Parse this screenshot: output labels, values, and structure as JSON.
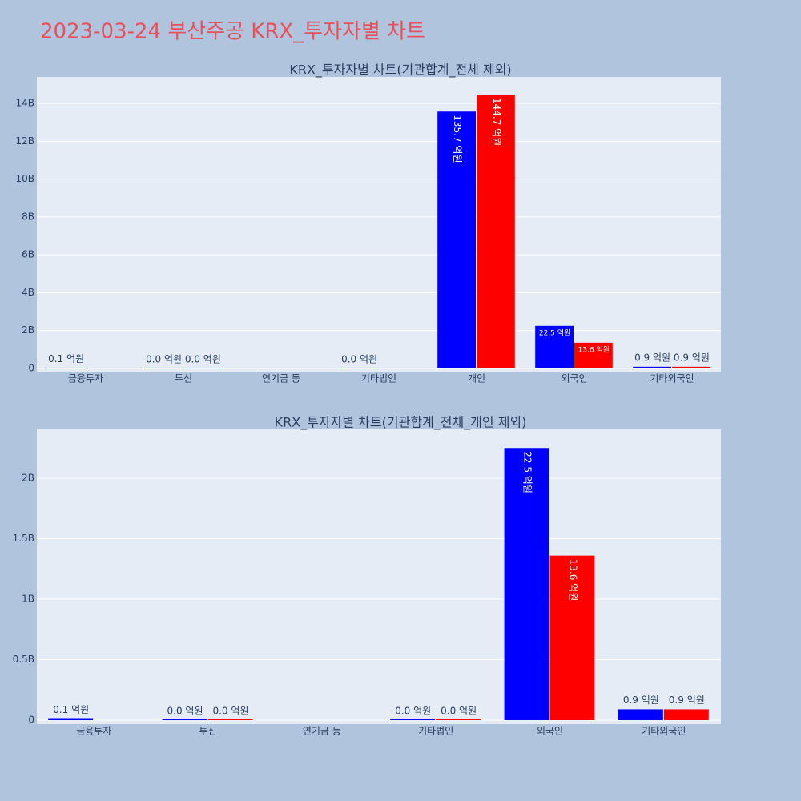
{
  "title": "2023-03-24 부산주공 KRX_투자자별 차트",
  "chart_data": [
    {
      "type": "bar",
      "title": "KRX_투자자별 차트(기관합계_전체 제외)",
      "categories": [
        "금융투자",
        "투신",
        "연기금 등",
        "기타법인",
        "개인",
        "외국인",
        "기타외국인"
      ],
      "series": [
        {
          "color": "#0000ff",
          "values": [
            10000000,
            0,
            null,
            0,
            13570000000,
            2250000000,
            90000000
          ],
          "value_labels": [
            "0.1 억원",
            "0.0 억원",
            null,
            "0.0 억원",
            "135.7 억원",
            "22.5 억원",
            "0.9 억원"
          ]
        },
        {
          "color": "#ff0000",
          "values": [
            null,
            0,
            null,
            null,
            14470000000,
            1360000000,
            90000000
          ],
          "value_labels": [
            null,
            "0.0 억원",
            null,
            null,
            "144.7 억원",
            "13.6 억원",
            "0.9 억원"
          ]
        }
      ],
      "ylim": [
        -170000000,
        15400000000
      ],
      "yticks": [
        0,
        {
          "value": 2000000000,
          "label": "2B"
        },
        {
          "value": 4000000000,
          "label": "4B"
        },
        {
          "value": 6000000000,
          "label": "6B"
        },
        {
          "value": 8000000000,
          "label": "8B"
        },
        {
          "value": 10000000000,
          "label": "10B"
        },
        {
          "value": 12000000000,
          "label": "12B"
        },
        {
          "value": 14000000000,
          "label": "14B"
        }
      ],
      "grid": true
    },
    {
      "type": "bar",
      "title": "KRX_투자자별 차트(기관합계_전체_개인 제외)",
      "categories": [
        "금융투자",
        "투신",
        "연기금 등",
        "기타법인",
        "외국인",
        "기타외국인"
      ],
      "series": [
        {
          "color": "#0000ff",
          "values": [
            10000000,
            0,
            null,
            0,
            2250000000,
            90000000
          ],
          "value_labels": [
            "0.1 억원",
            "0.0 억원",
            null,
            "0.0 억원",
            "22.5 억원",
            "0.9 억원"
          ]
        },
        {
          "color": "#ff0000",
          "values": [
            null,
            0,
            null,
            0,
            1360000000,
            90000000
          ],
          "value_labels": [
            null,
            "0.0 억원",
            null,
            "0.0 억원",
            "13.6 억원",
            "0.9 억원"
          ]
        }
      ],
      "ylim": [
        -33000000,
        2404000000
      ],
      "yticks": [
        0,
        {
          "value": 500000000,
          "label": "0.5B"
        },
        {
          "value": 1000000000,
          "label": "1B"
        },
        {
          "value": 1500000000,
          "label": "1.5B"
        },
        {
          "value": 2000000000,
          "label": "2B"
        }
      ],
      "grid": true
    }
  ]
}
